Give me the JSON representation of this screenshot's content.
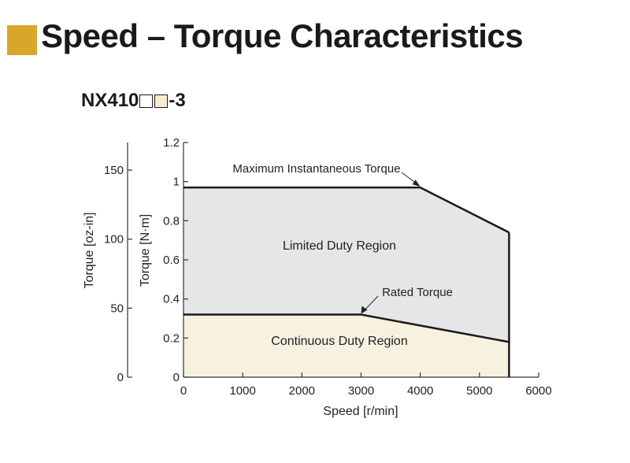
{
  "title": "Speed – Torque Characteristics",
  "model": {
    "prefix": "NX410",
    "suffix": "-3"
  },
  "colors": {
    "title_square": "#d9a62a",
    "box_fill": "#f5ecd2",
    "limited_fill": "#e6e6e8",
    "continuous_fill": "#f7f1e0",
    "line": "#1a1a1a"
  },
  "chart_data": {
    "type": "area",
    "xlabel": "Speed [r/min]",
    "ylabel": "Torque [N·m]",
    "ylabel2": "Torque [oz-in]",
    "xlim": [
      0,
      6000
    ],
    "ylim": [
      0,
      1.2
    ],
    "ylim2": [
      0,
      170
    ],
    "xticks": [
      "0",
      "1000",
      "2000",
      "3000",
      "4000",
      "5000",
      "6000"
    ],
    "yticks": [
      "0",
      "0.2",
      "0.4",
      "0.6",
      "0.8",
      "1",
      "1.2"
    ],
    "yticks2": [
      "0",
      "50",
      "100",
      "150"
    ],
    "series": [
      {
        "name": "Maximum Instantaneous Torque",
        "x": [
          0,
          4000,
          5500
        ],
        "y": [
          0.97,
          0.97,
          0.74
        ]
      },
      {
        "name": "Rated Torque",
        "x": [
          0,
          3000,
          5500
        ],
        "y": [
          0.32,
          0.32,
          0.18
        ]
      }
    ],
    "regions": [
      {
        "name": "Limited Duty Region"
      },
      {
        "name": "Continuous Duty Region"
      }
    ]
  }
}
